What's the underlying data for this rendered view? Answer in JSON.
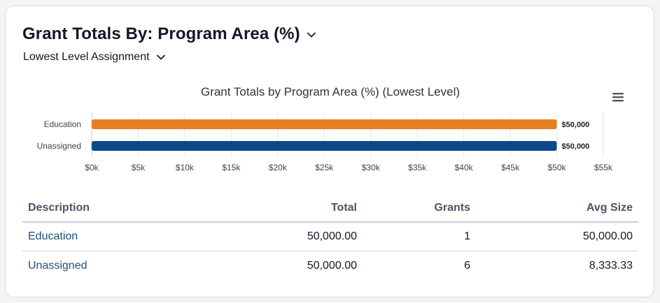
{
  "header": {
    "title": "Grant Totals By: Program Area (%)",
    "subtitle": "Lowest Level Assignment",
    "title_icon": "chevron-down-icon",
    "subtitle_icon": "chevron-down-icon"
  },
  "chart_data": {
    "type": "bar",
    "orientation": "horizontal",
    "title": "Grant Totals by Program Area (%) (Lowest Level)",
    "categories": [
      "Education",
      "Unassigned"
    ],
    "values": [
      50000,
      50000
    ],
    "data_labels": [
      "$50,000",
      "$50,000"
    ],
    "colors": [
      "#e67e22",
      "#0b4a8b"
    ],
    "xlim": [
      0,
      55000
    ],
    "x_ticks": [
      0,
      5000,
      10000,
      15000,
      20000,
      25000,
      30000,
      35000,
      40000,
      45000,
      50000,
      55000
    ],
    "x_tick_labels": [
      "$0k",
      "$5k",
      "$10k",
      "$15k",
      "$20k",
      "$25k",
      "$30k",
      "$35k",
      "$40k",
      "$45k",
      "$50k",
      "$55k"
    ],
    "grid": true,
    "legend": "none",
    "menu_icon": "hamburger-menu-icon"
  },
  "table": {
    "headers": [
      "Description",
      "Total",
      "Grants",
      "Avg Size"
    ],
    "rows": [
      {
        "description": "Education",
        "total": "50,000.00",
        "grants": "1",
        "avg_size": "50,000.00"
      },
      {
        "description": "Unassigned",
        "total": "50,000.00",
        "grants": "6",
        "avg_size": "8,333.33"
      }
    ]
  }
}
